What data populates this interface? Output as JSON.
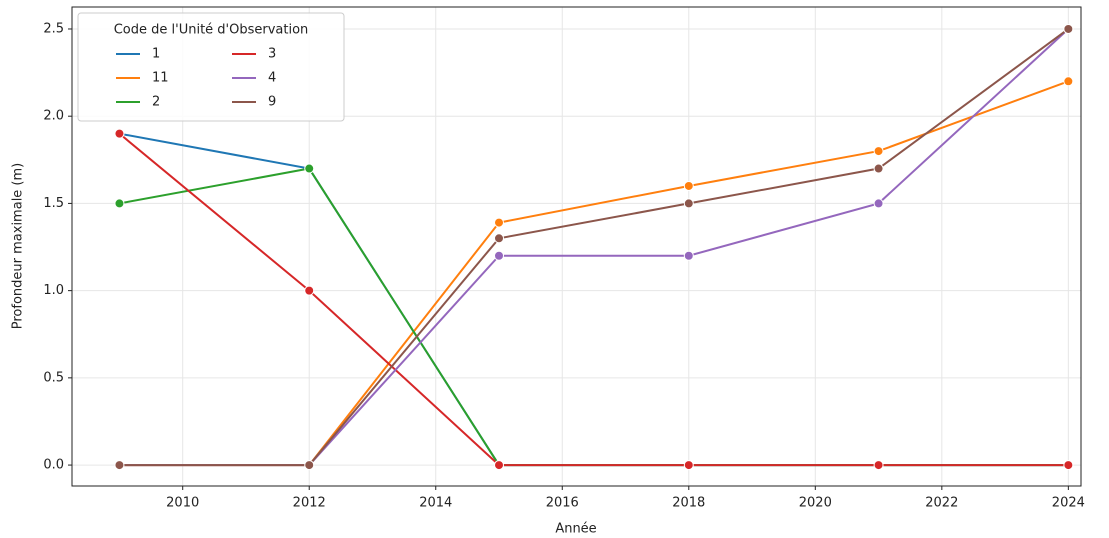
{
  "chart_data": {
    "type": "line",
    "x": [
      2009,
      2012,
      2015,
      2018,
      2021,
      2024
    ],
    "series": [
      {
        "name": "1",
        "color": "#1f77b4",
        "values": [
          1.9,
          1.7,
          0,
          0,
          0,
          0
        ]
      },
      {
        "name": "11",
        "color": "#ff7f0e",
        "values": [
          0,
          0,
          1.39,
          1.6,
          1.8,
          2.2
        ]
      },
      {
        "name": "2",
        "color": "#2ca02c",
        "values": [
          1.5,
          1.7,
          0,
          0,
          0,
          0
        ]
      },
      {
        "name": "3",
        "color": "#d62728",
        "values": [
          1.9,
          1.0,
          0,
          0,
          0,
          0
        ]
      },
      {
        "name": "4",
        "color": "#9467bd",
        "values": [
          0,
          0,
          1.2,
          1.2,
          1.5,
          2.5
        ]
      },
      {
        "name": "9",
        "color": "#8c564b",
        "values": [
          0,
          0,
          1.3,
          1.5,
          1.7,
          2.5
        ]
      }
    ],
    "xlabel": "Année",
    "ylabel": "Profondeur maximale (m)",
    "legend_title": "Code de l'Unité d'Observation",
    "legend": "upper left",
    "xlim": [
      2008.25,
      2024.2
    ],
    "ylim": [
      -0.12,
      2.626
    ],
    "xticks": [
      2010,
      2012,
      2014,
      2016,
      2018,
      2020,
      2022,
      2024
    ],
    "yticks": [
      {
        "value": 0,
        "label": "0.0"
      },
      0.5,
      {
        "value": 1,
        "label": "1.0"
      },
      1.5,
      {
        "value": 2,
        "label": "2.0"
      },
      2.5
    ],
    "grid": true
  }
}
